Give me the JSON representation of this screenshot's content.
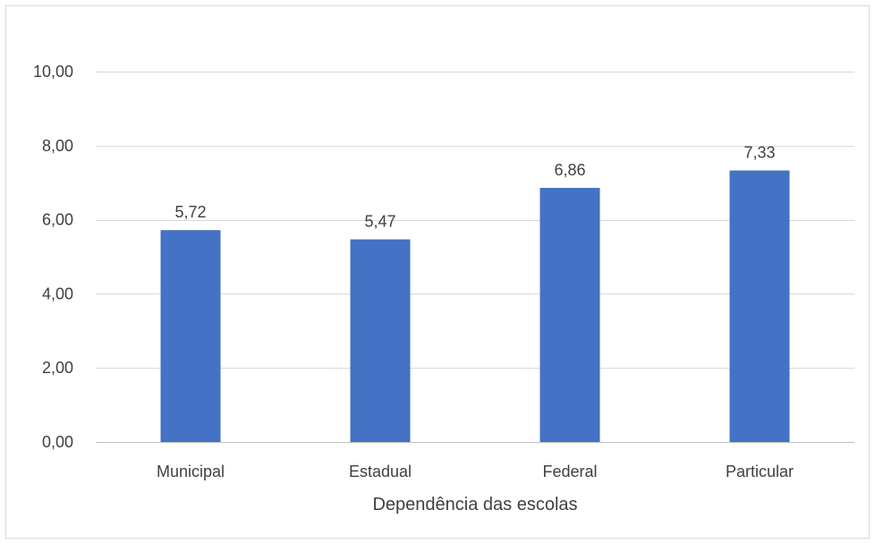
{
  "chart_data": {
    "type": "bar",
    "title": "",
    "xlabel": "Dependência das escolas",
    "ylabel": "",
    "categories": [
      "Municipal",
      "Estadual",
      "Federal",
      "Particular"
    ],
    "values": [
      5.72,
      5.47,
      6.86,
      7.33
    ],
    "value_labels": [
      "5,72",
      "5,47",
      "6,86",
      "7,33"
    ],
    "ylim": [
      0,
      10
    ],
    "yticks": [
      0,
      2,
      4,
      6,
      8,
      10
    ],
    "ytick_labels": [
      "0,00",
      "2,00",
      "4,00",
      "6,00",
      "8,00",
      "10,00"
    ],
    "grid": true,
    "legend": "none",
    "bar_color": "#4472C4"
  }
}
